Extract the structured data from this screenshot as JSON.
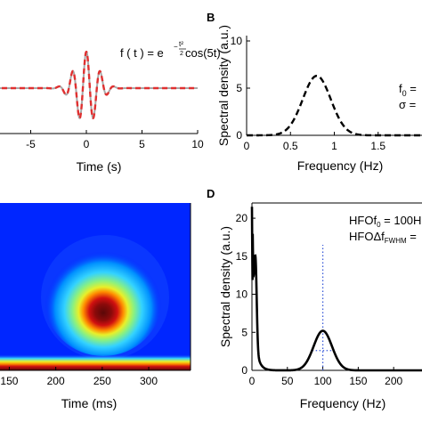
{
  "chart_data": [
    {
      "panel": "",
      "type": "line",
      "annotation": "f ( t ) = e^(-t²/2) cos(5t)",
      "annotation_parts": {
        "lhs": "f ( t ) = e",
        "exponent": "−",
        "exp_num": "t²",
        "exp_den": "2",
        "tail": "cos(5t)"
      },
      "xlabel": "Time (s)",
      "ylabel": "",
      "xlim": [
        -10,
        10
      ],
      "ylim": [
        -1.2,
        1.2
      ],
      "xticks": [
        "-5",
        "0",
        "5",
        "10"
      ],
      "xtick_values": [
        -5,
        0,
        5,
        10
      ],
      "series": [
        {
          "style": "solid",
          "color": "#a9a9a9",
          "function": "exp(-t^2/2)*cos(5t)",
          "x_range": [
            -10,
            10
          ]
        },
        {
          "style": "dashed",
          "color": "#e03030",
          "function": "exp(-t^2/2)*cos(5t)",
          "x_range": [
            -10,
            10
          ]
        }
      ]
    },
    {
      "panel": "B",
      "type": "line",
      "xlabel": "Frequency (Hz)",
      "ylabel": "Spectral density (a.u.)",
      "xlim": [
        0,
        2
      ],
      "ylim": [
        0,
        10
      ],
      "xticks": [
        "0",
        "0.5",
        "1",
        "1.5"
      ],
      "xtick_values": [
        0,
        0.5,
        1,
        1.5
      ],
      "yticks": [
        "0",
        "5",
        "10"
      ],
      "ytick_values": [
        0,
        5,
        10
      ],
      "annotations": [
        "f",
        "0",
        " =",
        "σ = "
      ],
      "series": [
        {
          "style": "dashed",
          "color": "#000000",
          "peak_x": 0.8,
          "peak_y": 6.3,
          "sigma": 0.16
        }
      ]
    },
    {
      "panel": "",
      "type": "heatmap",
      "xlabel": "Time (ms)",
      "ylabel": "",
      "xlim": [
        140,
        345
      ],
      "xticks": [
        "150",
        "200",
        "250",
        "300"
      ],
      "xtick_values": [
        150,
        200,
        250,
        300
      ],
      "blob_center_x": 250,
      "colormap": [
        "#0026ff",
        "#0090ff",
        "#33d2ff",
        "#8cf17f",
        "#e8f02a",
        "#ff8c00",
        "#d01010",
        "#5a0808"
      ]
    },
    {
      "panel": "D",
      "type": "line",
      "xlabel": "Frequency (Hz)",
      "ylabel": "Spectral density (a.u.)",
      "xlim": [
        0,
        240
      ],
      "ylim": [
        0,
        22
      ],
      "xticks": [
        "0",
        "50",
        "100",
        "150",
        "200"
      ],
      "xtick_values": [
        0,
        50,
        100,
        150,
        200
      ],
      "yticks": [
        "0",
        "5",
        "10",
        "15",
        "20"
      ],
      "ytick_values": [
        0,
        5,
        10,
        15,
        20
      ],
      "annotations": {
        "line1": {
          "a": "HFO",
          "b": "f",
          "sub": "0",
          "c": " = 100H"
        },
        "line2": {
          "a": "HFO",
          "b": "Δf",
          "sub": "FWHM",
          "c": " = "
        }
      },
      "series": [
        {
          "style": "solid",
          "color": "#000000",
          "low_peak_x": 5,
          "low_peak_y": 14,
          "peak_x": 100,
          "peak_y": 5.2,
          "sigma": 13
        }
      ],
      "guides": [
        {
          "style": "dotted",
          "color": "#3a5bd9",
          "orientation": "vertical",
          "x": 100,
          "y_from": 0,
          "y_to": 16.5
        },
        {
          "style": "dotted",
          "color": "#3a5bd9",
          "orientation": "horizontal",
          "y": 2.6,
          "x_from": 85,
          "x_to": 115
        }
      ]
    }
  ]
}
